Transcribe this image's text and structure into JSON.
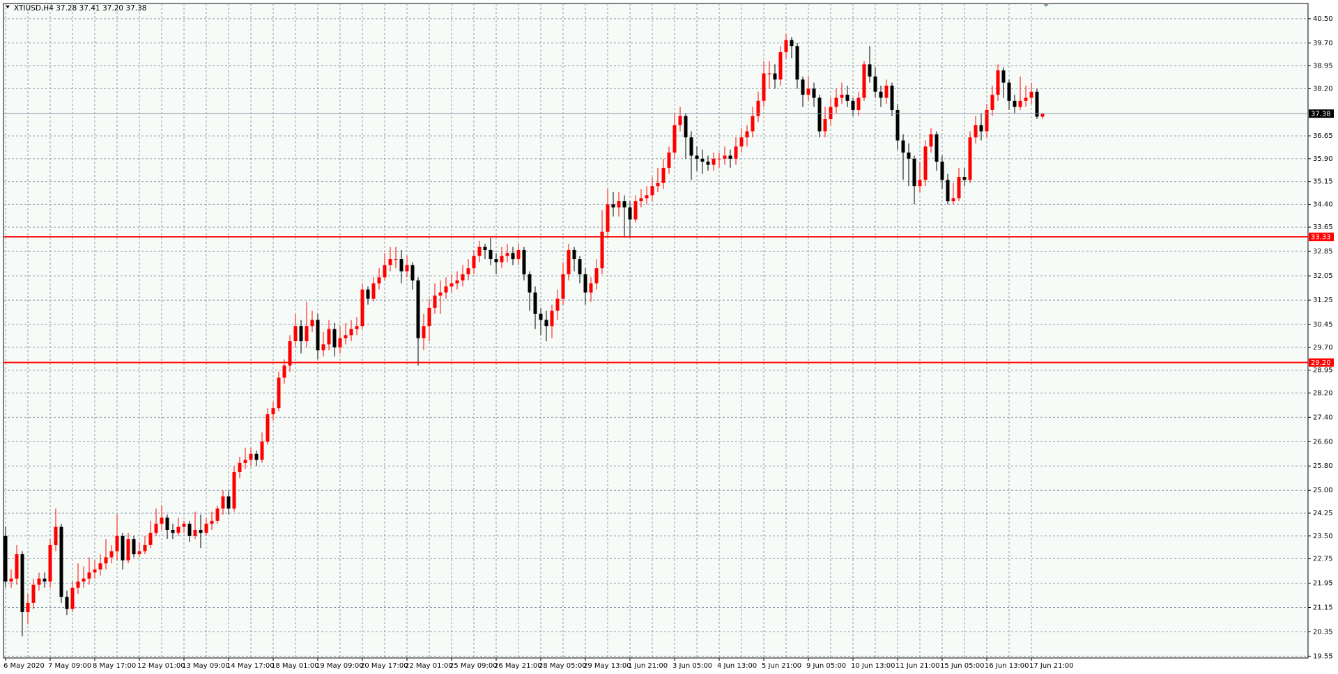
{
  "chart_data": {
    "type": "candlestick",
    "title": "XTIUSD,H4  37.28 37.41 37.20 37.38",
    "up_color": "#ff0000",
    "down_color": "#000000",
    "grid": true,
    "ylim": [
      19.49,
      41.0
    ],
    "yticks": [
      {
        "value": 40.5,
        "label": "40.50"
      },
      {
        "value": 39.7,
        "label": "39.70"
      },
      38.95,
      {
        "value": 38.2,
        "label": "38.20"
      },
      36.65,
      {
        "value": 35.9,
        "label": "35.90"
      },
      35.15,
      {
        "value": 34.4,
        "label": "34.40"
      },
      33.65,
      32.85,
      32.05,
      31.25,
      30.45,
      {
        "value": 29.7,
        "label": "29.70"
      },
      28.95,
      {
        "value": 28.2,
        "label": "28.20"
      },
      {
        "value": 27.4,
        "label": "27.40"
      },
      {
        "value": 26.6,
        "label": "26.60"
      },
      {
        "value": 25.8,
        "label": "25.80"
      },
      {
        "value": 25.0,
        "label": "25.00"
      },
      24.25,
      {
        "value": 23.5,
        "label": "23.50"
      },
      22.75,
      21.95,
      21.15,
      20.35,
      19.55
    ],
    "hlines": [
      {
        "value": 33.33,
        "color": "#ff0000"
      },
      {
        "value": 29.2,
        "value_label": "29.20",
        "color": "#ff0000"
      }
    ],
    "last_price": {
      "value": 37.38,
      "color": "#8a96a8"
    },
    "categories": [
      "6 May 2020",
      null,
      null,
      null,
      null,
      null,
      null,
      null,
      "7 May 09:00",
      null,
      null,
      null,
      null,
      null,
      null,
      null,
      "8 May 17:00",
      null,
      null,
      null,
      null,
      null,
      null,
      null,
      "12 May 01:00",
      null,
      null,
      null,
      null,
      null,
      null,
      null,
      "13 May 09:00",
      null,
      null,
      null,
      null,
      null,
      null,
      null,
      "14 May 17:00",
      null,
      null,
      null,
      null,
      null,
      null,
      null,
      "18 May 01:00",
      null,
      null,
      null,
      null,
      null,
      null,
      null,
      "19 May 09:00",
      null,
      null,
      null,
      null,
      null,
      null,
      null,
      "20 May 17:00",
      null,
      null,
      null,
      null,
      null,
      null,
      null,
      "22 May 01:00",
      null,
      null,
      null,
      null,
      null,
      null,
      null,
      "25 May 09:00",
      null,
      null,
      null,
      null,
      null,
      null,
      null,
      "26 May 21:00",
      null,
      null,
      null,
      null,
      null,
      null,
      null,
      "28 May 05:00",
      null,
      null,
      null,
      null,
      null,
      null,
      null,
      "29 May 13:00",
      null,
      null,
      null,
      null,
      null,
      null,
      null,
      "1 Jun 21:00",
      null,
      null,
      null,
      null,
      null,
      null,
      null,
      "3 Jun 05:00",
      null,
      null,
      null,
      null,
      null,
      null,
      null,
      "4 Jun 13:00",
      null,
      null,
      null,
      null,
      null,
      null,
      null,
      "5 Jun 21:00",
      null,
      null,
      null,
      null,
      null,
      null,
      null,
      "9 Jun 05:00",
      null,
      null,
      null,
      null,
      null,
      null,
      null,
      "10 Jun 13:00",
      null,
      null,
      null,
      null,
      null,
      null,
      null,
      "11 Jun 21:00",
      null,
      null,
      null,
      null,
      null,
      null,
      null,
      "15 Jun 05:00",
      null,
      null,
      null,
      null,
      null,
      null,
      null,
      "16 Jun 13:00",
      null,
      null,
      null,
      null,
      null,
      null,
      null,
      "17 Jun 21:00",
      null,
      null
    ],
    "values": [
      [
        23.5,
        23.8,
        21.8,
        22.0
      ],
      [
        22.0,
        22.4,
        21.8,
        22.1
      ],
      [
        22.1,
        23.2,
        21.9,
        22.9
      ],
      [
        22.9,
        23.0,
        20.2,
        21.0
      ],
      [
        21.0,
        21.6,
        20.6,
        21.3
      ],
      [
        21.3,
        22.1,
        21.1,
        21.9
      ],
      [
        21.9,
        22.3,
        21.7,
        22.1
      ],
      [
        22.1,
        22.3,
        21.8,
        22.0
      ],
      [
        22.0,
        23.4,
        21.8,
        23.2
      ],
      [
        23.2,
        24.4,
        23.0,
        23.8
      ],
      [
        23.8,
        23.9,
        21.3,
        21.5
      ],
      [
        21.5,
        21.7,
        20.9,
        21.1
      ],
      [
        21.1,
        22.0,
        21.0,
        21.8
      ],
      [
        21.8,
        22.6,
        21.6,
        22.0
      ],
      [
        22.0,
        22.5,
        21.8,
        22.1
      ],
      [
        22.1,
        22.8,
        21.9,
        22.3
      ],
      [
        22.3,
        22.7,
        22.1,
        22.4
      ],
      [
        22.4,
        22.9,
        22.2,
        22.6
      ],
      [
        22.6,
        23.4,
        22.4,
        22.8
      ],
      [
        22.8,
        23.2,
        22.6,
        23.0
      ],
      [
        23.0,
        24.2,
        22.7,
        23.5
      ],
      [
        23.5,
        23.6,
        22.4,
        22.7
      ],
      [
        22.7,
        23.6,
        22.6,
        23.4
      ],
      [
        23.4,
        23.5,
        22.8,
        22.9
      ],
      [
        22.9,
        23.3,
        22.8,
        23.0
      ],
      [
        23.0,
        23.5,
        22.9,
        23.2
      ],
      [
        23.2,
        24.0,
        23.1,
        23.6
      ],
      [
        23.6,
        24.4,
        23.5,
        23.9
      ],
      [
        23.9,
        24.5,
        23.7,
        24.1
      ],
      [
        24.1,
        24.2,
        23.4,
        23.7
      ],
      [
        23.7,
        23.9,
        23.4,
        23.6
      ],
      [
        23.6,
        24.1,
        23.5,
        23.8
      ],
      [
        23.8,
        24.0,
        23.6,
        23.9
      ],
      [
        23.9,
        24.0,
        23.3,
        23.5
      ],
      [
        23.5,
        24.3,
        23.4,
        23.7
      ],
      [
        23.7,
        24.2,
        23.1,
        23.6
      ],
      [
        23.6,
        24.1,
        23.5,
        23.9
      ],
      [
        23.9,
        24.3,
        23.7,
        24.0
      ],
      [
        24.0,
        24.5,
        23.9,
        24.4
      ],
      [
        24.4,
        25.0,
        24.2,
        24.8
      ],
      [
        24.8,
        25.0,
        24.2,
        24.4
      ],
      [
        24.4,
        25.8,
        24.3,
        25.6
      ],
      [
        25.6,
        26.1,
        25.4,
        25.9
      ],
      [
        25.9,
        26.4,
        25.7,
        26.0
      ],
      [
        26.0,
        26.4,
        25.8,
        26.2
      ],
      [
        26.2,
        26.3,
        25.8,
        26.0
      ],
      [
        26.0,
        26.9,
        25.9,
        26.6
      ],
      [
        26.6,
        27.7,
        26.5,
        27.5
      ],
      [
        27.5,
        27.9,
        27.3,
        27.7
      ],
      [
        27.7,
        28.9,
        27.6,
        28.7
      ],
      [
        28.7,
        29.3,
        28.5,
        29.1
      ],
      [
        29.1,
        30.1,
        28.9,
        29.9
      ],
      [
        29.9,
        30.8,
        29.7,
        30.4
      ],
      [
        30.4,
        30.6,
        29.5,
        29.9
      ],
      [
        29.9,
        31.2,
        29.7,
        30.4
      ],
      [
        30.4,
        30.9,
        30.2,
        30.6
      ],
      [
        30.6,
        30.8,
        29.3,
        29.6
      ],
      [
        29.6,
        30.2,
        29.4,
        29.8
      ],
      [
        29.8,
        30.6,
        29.6,
        30.3
      ],
      [
        30.3,
        30.5,
        29.4,
        29.7
      ],
      [
        29.7,
        30.4,
        29.5,
        30.0
      ],
      [
        30.0,
        30.5,
        29.8,
        30.1
      ],
      [
        30.1,
        30.6,
        29.9,
        30.3
      ],
      [
        30.3,
        30.7,
        30.1,
        30.4
      ],
      [
        30.4,
        31.8,
        30.3,
        31.6
      ],
      [
        31.6,
        31.7,
        31.1,
        31.3
      ],
      [
        31.3,
        32.0,
        31.2,
        31.8
      ],
      [
        31.8,
        32.3,
        31.6,
        32.0
      ],
      [
        32.0,
        32.8,
        31.9,
        32.4
      ],
      [
        32.4,
        33.0,
        32.2,
        32.6
      ],
      [
        32.6,
        33.0,
        32.3,
        32.6
      ],
      [
        32.6,
        32.9,
        31.8,
        32.2
      ],
      [
        32.2,
        32.7,
        32.0,
        32.4
      ],
      [
        32.4,
        32.5,
        31.6,
        31.9
      ],
      [
        31.9,
        32.0,
        29.1,
        30.0
      ],
      [
        30.0,
        30.8,
        29.6,
        30.4
      ],
      [
        30.4,
        31.3,
        29.9,
        31.0
      ],
      [
        31.0,
        31.8,
        30.8,
        31.4
      ],
      [
        31.4,
        31.9,
        30.8,
        31.5
      ],
      [
        31.5,
        32.0,
        31.3,
        31.7
      ],
      [
        31.7,
        32.1,
        31.5,
        31.8
      ],
      [
        31.8,
        32.2,
        31.6,
        31.9
      ],
      [
        31.9,
        32.4,
        31.7,
        32.1
      ],
      [
        32.1,
        32.6,
        31.9,
        32.3
      ],
      [
        32.3,
        32.9,
        32.1,
        32.7
      ],
      [
        32.7,
        33.2,
        32.5,
        33.0
      ],
      [
        33.0,
        33.1,
        32.6,
        32.9
      ],
      [
        32.9,
        33.3,
        32.4,
        32.6
      ],
      [
        32.6,
        32.8,
        32.1,
        32.5
      ],
      [
        32.5,
        33.0,
        32.3,
        32.7
      ],
      [
        32.7,
        33.1,
        32.5,
        32.8
      ],
      [
        32.8,
        33.0,
        32.4,
        32.6
      ],
      [
        32.6,
        33.1,
        32.4,
        32.9
      ],
      [
        32.9,
        33.0,
        31.9,
        32.1
      ],
      [
        32.1,
        32.2,
        30.9,
        31.5
      ],
      [
        31.5,
        31.7,
        30.3,
        30.8
      ],
      [
        30.8,
        31.0,
        30.1,
        30.6
      ],
      [
        30.6,
        30.9,
        29.9,
        30.4
      ],
      [
        30.4,
        31.1,
        30.0,
        30.9
      ],
      [
        30.9,
        31.6,
        30.6,
        31.3
      ],
      [
        31.3,
        32.5,
        31.1,
        32.1
      ],
      [
        32.1,
        33.1,
        31.9,
        32.9
      ],
      [
        32.9,
        33.0,
        32.2,
        32.6
      ],
      [
        32.6,
        32.7,
        31.8,
        32.1
      ],
      [
        32.1,
        32.3,
        31.1,
        31.5
      ],
      [
        31.5,
        32.0,
        31.2,
        31.8
      ],
      [
        31.8,
        32.6,
        31.6,
        32.3
      ],
      [
        32.3,
        34.2,
        32.1,
        33.5
      ],
      [
        33.5,
        34.9,
        33.3,
        34.4
      ],
      [
        34.4,
        34.8,
        34.0,
        34.3
      ],
      [
        34.3,
        34.8,
        34.0,
        34.5
      ],
      [
        34.5,
        34.7,
        33.3,
        34.3
      ],
      [
        34.3,
        34.5,
        33.3,
        33.9
      ],
      [
        33.9,
        34.7,
        33.8,
        34.5
      ],
      [
        34.5,
        34.9,
        34.3,
        34.6
      ],
      [
        34.6,
        35.0,
        34.4,
        34.7
      ],
      [
        34.7,
        35.3,
        34.5,
        35.0
      ],
      [
        35.0,
        35.6,
        34.8,
        35.1
      ],
      [
        35.1,
        35.9,
        34.9,
        35.6
      ],
      [
        35.6,
        36.3,
        35.4,
        36.1
      ],
      [
        36.1,
        37.4,
        35.9,
        37.0
      ],
      [
        37.0,
        37.6,
        36.8,
        37.3
      ],
      [
        37.3,
        37.4,
        35.9,
        36.6
      ],
      [
        36.6,
        36.8,
        35.2,
        36.0
      ],
      [
        36.0,
        36.3,
        35.5,
        35.9
      ],
      [
        35.9,
        36.2,
        35.4,
        35.8
      ],
      [
        35.8,
        36.0,
        35.5,
        35.7
      ],
      [
        35.7,
        36.1,
        35.5,
        35.9
      ],
      [
        35.9,
        36.1,
        35.6,
        35.9
      ],
      [
        35.9,
        36.3,
        35.7,
        36.0
      ],
      [
        36.0,
        36.2,
        35.6,
        35.9
      ],
      [
        35.9,
        36.6,
        35.7,
        36.3
      ],
      [
        36.3,
        36.9,
        36.1,
        36.6
      ],
      [
        36.6,
        37.0,
        36.3,
        36.8
      ],
      [
        36.8,
        37.6,
        36.6,
        37.3
      ],
      [
        37.3,
        38.1,
        37.1,
        37.8
      ],
      [
        37.8,
        39.1,
        37.6,
        38.7
      ],
      [
        38.7,
        39.1,
        38.2,
        38.7
      ],
      [
        38.7,
        39.0,
        38.2,
        38.5
      ],
      [
        38.5,
        39.6,
        38.3,
        39.4
      ],
      [
        39.4,
        40.0,
        39.2,
        39.8
      ],
      [
        39.8,
        39.9,
        39.2,
        39.6
      ],
      [
        39.6,
        39.7,
        38.2,
        38.5
      ],
      [
        38.5,
        38.6,
        37.6,
        38.0
      ],
      [
        38.0,
        38.6,
        37.8,
        38.2
      ],
      [
        38.2,
        38.4,
        37.6,
        37.9
      ],
      [
        37.9,
        38.0,
        36.6,
        36.8
      ],
      [
        36.8,
        37.6,
        36.6,
        37.2
      ],
      [
        37.2,
        37.9,
        37.0,
        37.6
      ],
      [
        37.6,
        38.2,
        37.4,
        37.9
      ],
      [
        37.9,
        38.4,
        37.7,
        38.0
      ],
      [
        38.0,
        38.3,
        37.6,
        37.8
      ],
      [
        37.8,
        37.9,
        37.3,
        37.5
      ],
      [
        37.5,
        38.1,
        37.3,
        37.9
      ],
      [
        37.9,
        39.1,
        37.8,
        39.0
      ],
      [
        39.0,
        39.6,
        38.4,
        38.6
      ],
      [
        38.6,
        38.9,
        37.9,
        38.1
      ],
      [
        38.1,
        38.3,
        37.6,
        37.9
      ],
      [
        37.9,
        38.5,
        37.7,
        38.3
      ],
      [
        38.3,
        38.4,
        37.3,
        37.5
      ],
      [
        37.5,
        37.7,
        36.2,
        36.5
      ],
      [
        36.5,
        36.7,
        35.2,
        36.1
      ],
      [
        36.1,
        36.4,
        35.0,
        35.9
      ],
      [
        35.9,
        36.0,
        34.4,
        35.0
      ],
      [
        35.0,
        35.8,
        34.8,
        35.2
      ],
      [
        35.2,
        36.5,
        35.0,
        36.3
      ],
      [
        36.3,
        36.9,
        36.1,
        36.7
      ],
      [
        36.7,
        36.8,
        35.5,
        35.8
      ],
      [
        35.8,
        36.0,
        34.9,
        35.2
      ],
      [
        35.2,
        35.4,
        34.4,
        34.5
      ],
      [
        34.5,
        35.1,
        34.4,
        34.6
      ],
      [
        34.6,
        35.6,
        34.5,
        35.3
      ],
      [
        35.3,
        35.6,
        35.0,
        35.2
      ],
      [
        35.2,
        36.8,
        35.1,
        36.6
      ],
      [
        36.6,
        37.3,
        36.4,
        37.0
      ],
      [
        37.0,
        37.4,
        36.5,
        36.8
      ],
      [
        36.8,
        37.7,
        36.6,
        37.5
      ],
      [
        37.5,
        38.3,
        37.3,
        38.0
      ],
      [
        38.0,
        39.0,
        37.8,
        38.8
      ],
      [
        38.8,
        38.9,
        37.9,
        38.4
      ],
      [
        38.4,
        38.5,
        37.5,
        37.8
      ],
      [
        37.8,
        38.0,
        37.4,
        37.6
      ],
      [
        37.6,
        38.6,
        37.5,
        37.8
      ],
      [
        37.8,
        38.3,
        37.6,
        37.9
      ],
      [
        37.9,
        38.4,
        37.7,
        38.1
      ],
      [
        38.1,
        38.2,
        37.2,
        37.28
      ],
      [
        37.28,
        37.41,
        37.2,
        37.38
      ]
    ]
  }
}
